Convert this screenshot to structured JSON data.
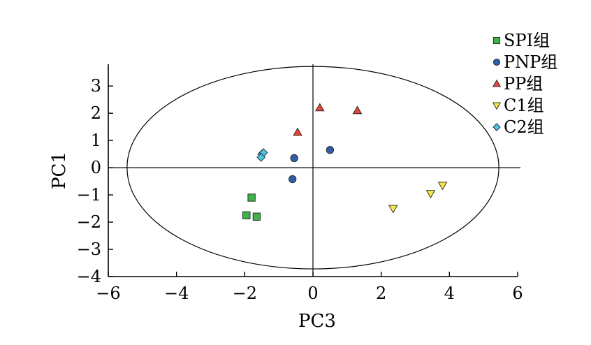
{
  "chart_data": {
    "type": "scatter",
    "xlabel": "PC3",
    "ylabel": "PC1",
    "xlim": [
      -6,
      6
    ],
    "ylim": [
      -4,
      3.8
    ],
    "xticks": [
      -6,
      -4,
      -2,
      0,
      2,
      4,
      6
    ],
    "yticks": [
      -4,
      -3,
      -2,
      -1,
      0,
      1,
      2,
      3
    ],
    "xtick_labels": [
      "−6",
      "−4",
      "−2",
      "0",
      "2",
      "4",
      "6"
    ],
    "ytick_labels": [
      "−4",
      "−3",
      "−2",
      "−1",
      "0",
      "1",
      "2",
      "3"
    ],
    "zero_lines": true,
    "ellipse": {
      "cx": 0,
      "cy": 0,
      "rx": 5.45,
      "ry": 3.72
    },
    "legend_position": "top-right",
    "series": [
      {
        "name": "SPI组",
        "marker": "square",
        "color": "#3cb44b",
        "points": [
          [
            -1.8,
            -1.1
          ],
          [
            -1.95,
            -1.75
          ],
          [
            -1.65,
            -1.8
          ]
        ]
      },
      {
        "name": "PNP组",
        "marker": "circle",
        "color": "#2e5fa8",
        "points": [
          [
            -0.55,
            0.35
          ],
          [
            0.5,
            0.65
          ],
          [
            -0.6,
            -0.42
          ]
        ]
      },
      {
        "name": "PP组",
        "marker": "triangle-up",
        "color": "#e8443a",
        "points": [
          [
            0.2,
            2.2
          ],
          [
            1.3,
            2.1
          ],
          [
            -0.45,
            1.3
          ]
        ]
      },
      {
        "name": "C1组",
        "marker": "triangle-down",
        "color": "#f5e64a",
        "points": [
          [
            2.35,
            -1.5
          ],
          [
            3.45,
            -0.95
          ],
          [
            3.8,
            -0.65
          ]
        ]
      },
      {
        "name": "C2组",
        "marker": "diamond",
        "color": "#4ec3df",
        "points": [
          [
            -1.5,
            0.5
          ],
          [
            -1.45,
            0.55
          ],
          [
            -1.52,
            0.38
          ]
        ]
      }
    ]
  }
}
